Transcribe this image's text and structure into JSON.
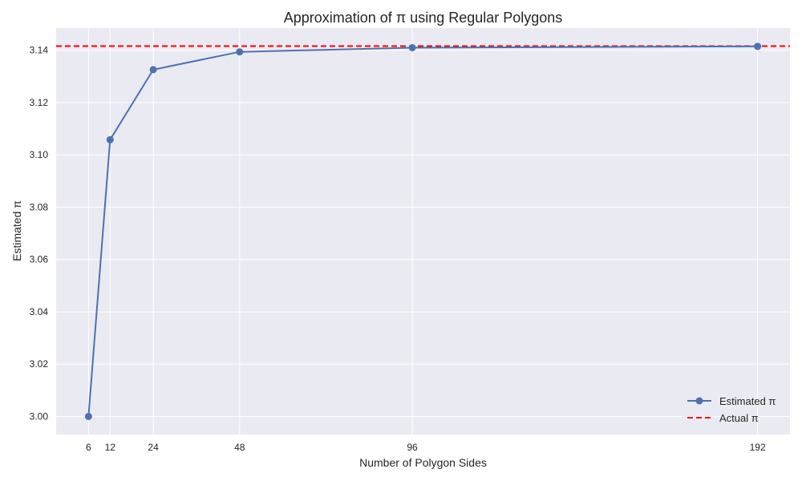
{
  "chart_data": {
    "type": "line",
    "title": "Approximation of π using Regular Polygons",
    "xlabel": "Number of Polygon Sides",
    "ylabel": "Estimated π",
    "x": [
      6,
      12,
      24,
      48,
      96,
      192
    ],
    "series": [
      {
        "name": "Estimated π",
        "values": [
          3.0,
          3.1058,
          3.1326,
          3.1394,
          3.141,
          3.1415
        ],
        "color": "#4c72b0",
        "marker": "circle"
      }
    ],
    "reference_lines": [
      {
        "name": "Actual π",
        "value": 3.14159,
        "color": "#ff0000",
        "style": "dashed"
      }
    ],
    "xticks": [
      6,
      12,
      24,
      48,
      96,
      192
    ],
    "xtick_labels": [
      "6",
      "12",
      "24",
      "48",
      "96",
      "192"
    ],
    "yticks": [
      3.0,
      3.02,
      3.04,
      3.06,
      3.08,
      3.1,
      3.12,
      3.14
    ],
    "ytick_labels": [
      "3.00",
      "3.02",
      "3.04",
      "3.06",
      "3.08",
      "3.10",
      "3.12",
      "3.14"
    ],
    "xlim": [
      -3,
      201
    ],
    "ylim": [
      2.9931,
      3.1485
    ],
    "grid": true,
    "legend_position": "bottom-right",
    "background": "#eaeaf2",
    "grid_color": "#ffffff"
  }
}
